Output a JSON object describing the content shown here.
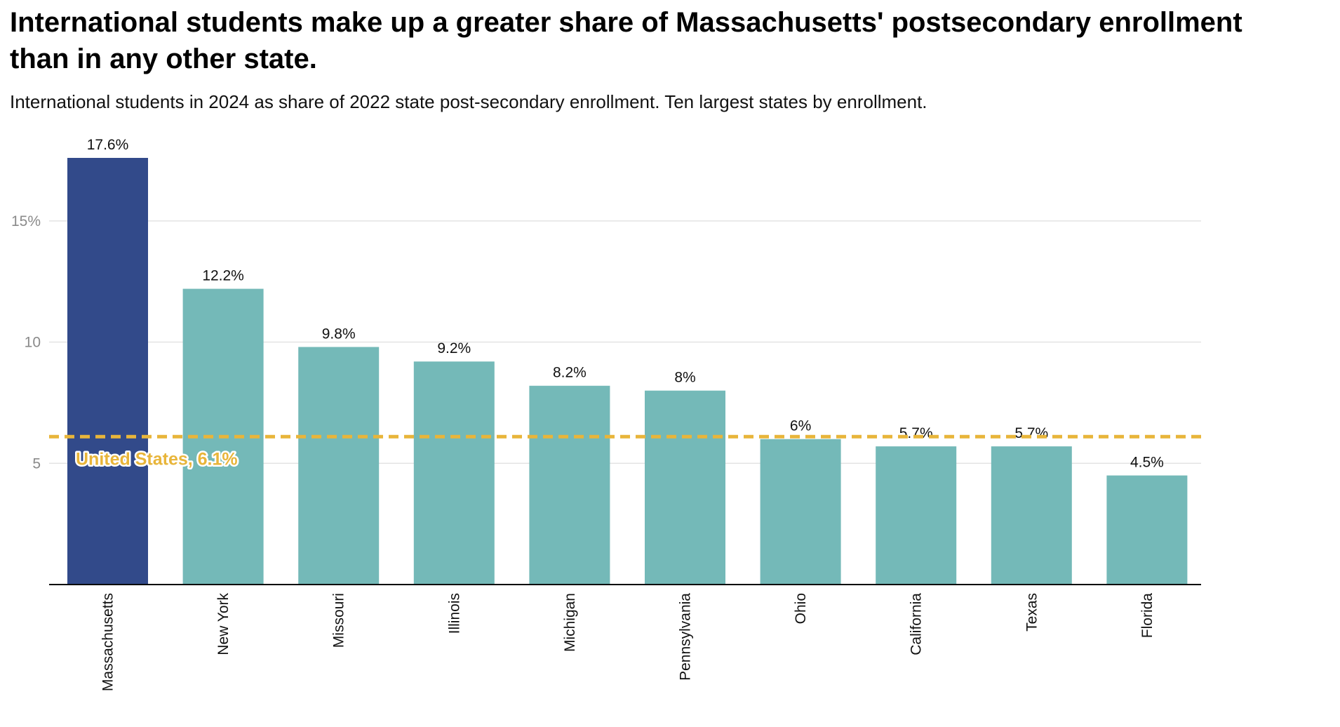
{
  "chart_data": {
    "type": "bar",
    "title": "International students make up a greater share of Massachusetts' postsecondary enrollment than in any other state.",
    "subtitle": "International students in 2024 as share of 2022 state post-secondary enrollment. Ten largest states by enrollment.",
    "categories": [
      "Massachusetts",
      "New York",
      "Missouri",
      "Illinois",
      "Michigan",
      "Pennsylvania",
      "Ohio",
      "California",
      "Texas",
      "Florida"
    ],
    "values": [
      17.6,
      12.2,
      9.8,
      9.2,
      8.2,
      8,
      6,
      5.7,
      5.7,
      4.5
    ],
    "value_labels": [
      "17.6%",
      "12.2%",
      "9.8%",
      "9.2%",
      "8.2%",
      "8%",
      "6%",
      "5.7%",
      "5.7%",
      "4.5%"
    ],
    "ylim": [
      0,
      17.6
    ],
    "yticks": [
      {
        "value": 5,
        "label": "5"
      },
      {
        "value": 10,
        "label": "10"
      },
      {
        "value": 15,
        "label": "15%"
      }
    ],
    "grid": true,
    "reference_line": {
      "value": 6.1,
      "label": "United States, 6.1%",
      "color": "#E8B53A"
    },
    "colors": {
      "highlight": "#324A8A",
      "default": "#74B9B8",
      "grid": "#e3e3e3",
      "axis": "#000000"
    },
    "highlight_index": 0
  }
}
